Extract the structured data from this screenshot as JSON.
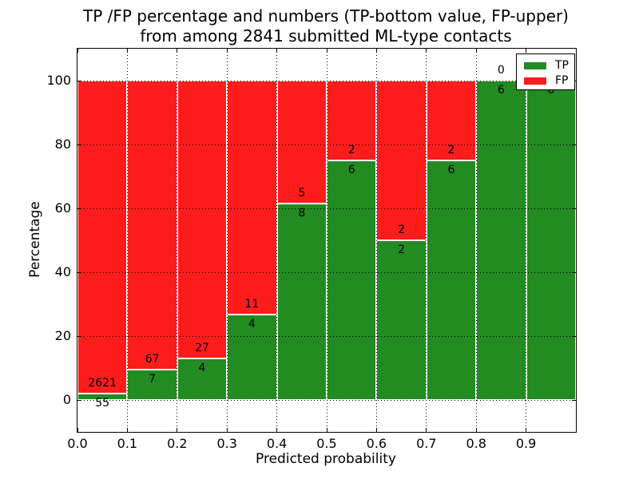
{
  "chart_data": {
    "type": "bar",
    "subtype": "stacked-percentage",
    "title": "TP /FP percentage and numbers (TP-bottom value, FP-upper)\nfrom among 2841 submitted ML-type contacts",
    "title_line1": "TP /FP percentage and numbers (TP-bottom value, FP-upper)",
    "title_line2": "from among 2841 submitted ML-type contacts",
    "xlabel": "Predicted probability",
    "ylabel": "Percentage",
    "xlim": [
      0.0,
      1.0
    ],
    "ylim": [
      -10,
      110
    ],
    "x_tick_labels": [
      "0.0",
      "0.1",
      "0.2",
      "0.3",
      "0.4",
      "0.5",
      "0.6",
      "0.7",
      "0.8",
      "0.9"
    ],
    "y_tick_values": [
      0,
      20,
      40,
      60,
      80,
      100
    ],
    "grid": true,
    "categories": [
      "0.0-0.1",
      "0.1-0.2",
      "0.2-0.3",
      "0.3-0.4",
      "0.4-0.5",
      "0.5-0.6",
      "0.6-0.7",
      "0.7-0.8",
      "0.8-0.9",
      "0.9-1.0"
    ],
    "series": [
      {
        "name": "TP",
        "color": "#228b22",
        "values": [
          55,
          7,
          4,
          4,
          8,
          6,
          2,
          6,
          6,
          6
        ]
      },
      {
        "name": "FP",
        "color": "#fc1c1c",
        "values": [
          2621,
          67,
          27,
          11,
          5,
          2,
          2,
          2,
          0,
          0
        ]
      }
    ],
    "tp_percent_of_bin": [
      2.06,
      9.46,
      12.9,
      26.67,
      61.54,
      75.0,
      50.0,
      75.0,
      100.0,
      100.0
    ],
    "legend": {
      "position": "upper right",
      "entries": [
        {
          "label": "TP",
          "color": "#228b22"
        },
        {
          "label": "FP",
          "color": "#fc1c1c"
        }
      ]
    },
    "bar_edge_color": "#ffffff",
    "grid_color": "#000000",
    "background_color": "#ffffff"
  }
}
